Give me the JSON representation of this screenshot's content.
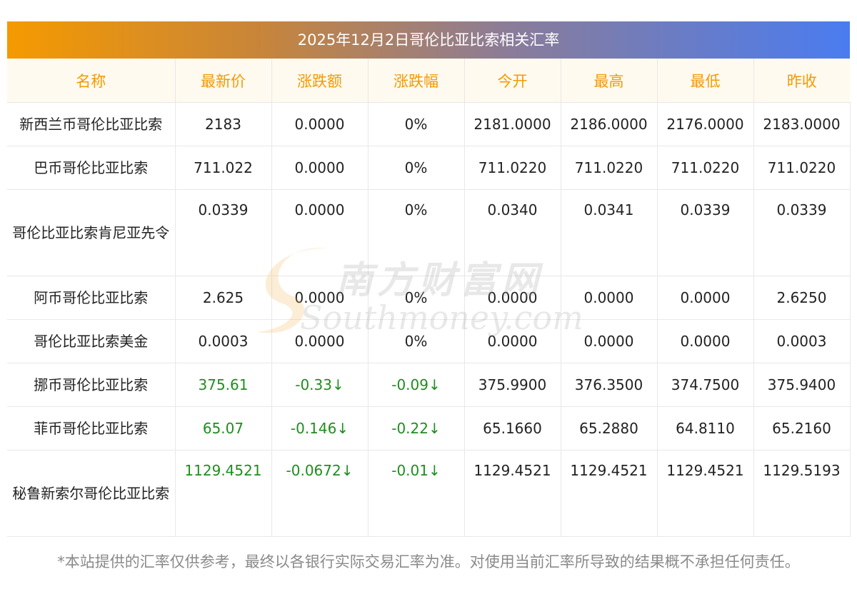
{
  "title": "2025年12月2日哥伦比亚比索相关汇率",
  "headers": [
    "名称",
    "最新价",
    "涨跌额",
    "涨跌幅",
    "今开",
    "最高",
    "最低",
    "昨收"
  ],
  "rows": [
    {
      "name": "新西兰币哥伦比亚比索",
      "latest": "2183",
      "change": "0.0000",
      "pct": "0%",
      "open": "2181.0000",
      "high": "2186.0000",
      "low": "2176.0000",
      "prev": "2183.0000"
    },
    {
      "name": "巴币哥伦比亚比索",
      "latest": "711.022",
      "change": "0.0000",
      "pct": "0%",
      "open": "711.0220",
      "high": "711.0220",
      "low": "711.0220",
      "prev": "711.0220"
    },
    {
      "name": "哥伦比亚比索肯尼亚先令",
      "latest": "0.0339",
      "change": "0.0000",
      "pct": "0%",
      "open": "0.0340",
      "high": "0.0341",
      "low": "0.0339",
      "prev": "0.0339"
    },
    {
      "name": "阿币哥伦比亚比索",
      "latest": "2.625",
      "change": "0.0000",
      "pct": "0%",
      "open": "0.0000",
      "high": "0.0000",
      "low": "0.0000",
      "prev": "2.6250"
    },
    {
      "name": "哥伦比亚比索美金",
      "latest": "0.0003",
      "change": "0.0000",
      "pct": "0%",
      "open": "0.0000",
      "high": "0.0000",
      "low": "0.0000",
      "prev": "0.0003"
    },
    {
      "name": "挪币哥伦比亚比索",
      "latest": "375.61",
      "change": "-0.33↓",
      "pct": "-0.09↓",
      "open": "375.9900",
      "high": "376.3500",
      "low": "374.7500",
      "prev": "375.9400"
    },
    {
      "name": "菲币哥伦比亚比索",
      "latest": "65.07",
      "change": "-0.146↓",
      "pct": "-0.22↓",
      "open": "65.1660",
      "high": "65.2880",
      "low": "64.8110",
      "prev": "65.2160"
    },
    {
      "name": "秘鲁新索尔哥伦比亚比索",
      "latest": "1129.4521",
      "change": "-0.0672↓",
      "pct": "-0.01↓",
      "open": "1129.4521",
      "high": "1129.4521",
      "low": "1129.4521",
      "prev": "1129.5193"
    }
  ],
  "watermark": {
    "cn": "南方财富网",
    "en": "Southmoney.com"
  },
  "notice": "*本站提供的汇率仅供参考，最终以各银行实际交易汇率为准。对使用当前汇率所导致的结果概不承担任何责任。",
  "colors": {
    "header_text": "#f39a00",
    "down": "#1e8e1e"
  }
}
